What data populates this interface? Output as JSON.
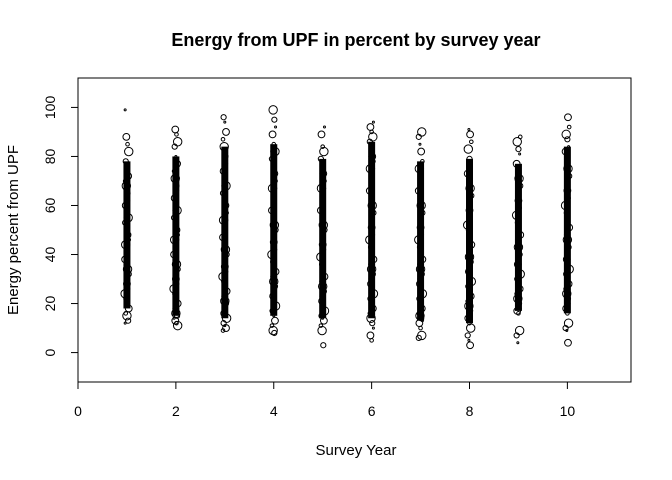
{
  "chart_data": {
    "type": "scatter",
    "title": "Energy from UPF in percent by survey year",
    "xlabel": "Survey Year",
    "ylabel": "Energy percent from UPF",
    "xlim": [
      0,
      11.3
    ],
    "ylim": [
      -12,
      112
    ],
    "x_ticks": [
      "0",
      "2",
      "4",
      "6",
      "8",
      "10"
    ],
    "y_ticks": [
      "0",
      "20",
      "40",
      "60",
      "80",
      "100"
    ],
    "grid": false,
    "point_style": "open circles, size proportional to survey weight",
    "series": [
      {
        "x": [
          1,
          1,
          1,
          1,
          1,
          1,
          1,
          1,
          1,
          1,
          1,
          1,
          1,
          1,
          1,
          1,
          1,
          1,
          1,
          1,
          1,
          1,
          1,
          1,
          1,
          1,
          1,
          1,
          1,
          1,
          1,
          1,
          1,
          1,
          1,
          1,
          2,
          2,
          2,
          2,
          2,
          2,
          2,
          2,
          2,
          2,
          2,
          2,
          2,
          2,
          2,
          2,
          2,
          2,
          2,
          2,
          2,
          2,
          2,
          2,
          2,
          2,
          2,
          2,
          2,
          2,
          2,
          2,
          2,
          2,
          2,
          2,
          2,
          2,
          3,
          3,
          3,
          3,
          3,
          3,
          3,
          3,
          3,
          3,
          3,
          3,
          3,
          3,
          3,
          3,
          3,
          3,
          3,
          3,
          3,
          3,
          3,
          3,
          3,
          3,
          3,
          3,
          3,
          3,
          3,
          3,
          3,
          3,
          3,
          3,
          3,
          3,
          3,
          4,
          4,
          4,
          4,
          4,
          4,
          4,
          4,
          4,
          4,
          4,
          4,
          4,
          4,
          4,
          4,
          4,
          4,
          4,
          4,
          4,
          4,
          4,
          4,
          4,
          4,
          4,
          4,
          4,
          4,
          4,
          4,
          4,
          4,
          4,
          4,
          4,
          5,
          5,
          5,
          5,
          5,
          5,
          5,
          5,
          5,
          5,
          5,
          5,
          5,
          5,
          5,
          5,
          5,
          5,
          5,
          5,
          5,
          5,
          5,
          5,
          5,
          5,
          5,
          5,
          5,
          5,
          5,
          5,
          5,
          5,
          5,
          6,
          6,
          6,
          6,
          6,
          6,
          6,
          6,
          6,
          6,
          6,
          6,
          6,
          6,
          6,
          6,
          6,
          6,
          6,
          6,
          6,
          6,
          6,
          6,
          6,
          6,
          6,
          6,
          6,
          6,
          6,
          6,
          6,
          6,
          6,
          6,
          6,
          6,
          7,
          7,
          7,
          7,
          7,
          7,
          7,
          7,
          7,
          7,
          7,
          7,
          7,
          7,
          7,
          7,
          7,
          7,
          7,
          7,
          7,
          7,
          7,
          7,
          7,
          7,
          7,
          7,
          7,
          7,
          7,
          7,
          7,
          7,
          7,
          7,
          7,
          8,
          8,
          8,
          8,
          8,
          8,
          8,
          8,
          8,
          8,
          8,
          8,
          8,
          8,
          8,
          8,
          8,
          8,
          8,
          8,
          8,
          8,
          8,
          8,
          8,
          8,
          8,
          8,
          8,
          8,
          8,
          8,
          8,
          8,
          8,
          8,
          8,
          9,
          9,
          9,
          9,
          9,
          9,
          9,
          9,
          9,
          9,
          9,
          9,
          9,
          9,
          9,
          9,
          9,
          9,
          9,
          9,
          9,
          9,
          9,
          9,
          9,
          9,
          9,
          9,
          9,
          9,
          9,
          9,
          9,
          9,
          10,
          10,
          10,
          10,
          10,
          10,
          10,
          10,
          10,
          10,
          10,
          10,
          10,
          10,
          10,
          10,
          10,
          10,
          10,
          10,
          10,
          10,
          10,
          10,
          10,
          10,
          10,
          10,
          10,
          10,
          10,
          10,
          10,
          10,
          10,
          10
        ],
        "y": [
          99,
          88,
          85,
          82,
          78,
          75,
          72,
          70,
          68,
          65,
          62,
          60,
          58,
          55,
          53,
          50,
          48,
          46,
          44,
          42,
          40,
          38,
          36,
          34,
          32,
          30,
          28,
          26,
          24,
          22,
          20,
          18,
          16,
          15,
          13,
          12,
          91,
          89,
          86,
          84,
          80,
          77,
          74,
          71,
          68,
          66,
          63,
          60,
          58,
          55,
          52,
          50,
          48,
          46,
          44,
          42,
          40,
          38,
          36,
          34,
          32,
          30,
          28,
          26,
          24,
          22,
          20,
          18,
          16,
          15,
          14,
          13,
          12,
          11,
          96,
          94,
          90,
          87,
          84,
          80,
          77,
          74,
          71,
          68,
          65,
          62,
          60,
          57,
          54,
          52,
          50,
          47,
          45,
          42,
          40,
          37,
          35,
          33,
          31,
          29,
          27,
          25,
          23,
          21,
          20,
          18,
          16,
          15,
          14,
          12,
          11,
          10,
          9,
          99,
          95,
          92,
          89,
          85,
          82,
          79,
          76,
          73,
          70,
          67,
          64,
          61,
          58,
          55,
          52,
          50,
          47,
          45,
          42,
          40,
          37,
          35,
          33,
          31,
          29,
          27,
          25,
          23,
          21,
          19,
          17,
          15,
          13,
          11,
          9,
          8,
          92,
          89,
          84,
          82,
          79,
          76,
          73,
          70,
          67,
          64,
          61,
          58,
          55,
          52,
          50,
          47,
          44,
          42,
          39,
          36,
          34,
          31,
          29,
          27,
          25,
          23,
          21,
          19,
          17,
          15,
          14,
          13,
          11,
          9,
          3,
          94,
          92,
          90,
          88,
          86,
          83,
          80,
          78,
          75,
          72,
          69,
          66,
          63,
          60,
          57,
          54,
          51,
          48,
          46,
          43,
          40,
          38,
          36,
          34,
          32,
          30,
          28,
          26,
          24,
          22,
          20,
          18,
          16,
          14,
          12,
          10,
          7,
          5,
          90,
          88,
          85,
          82,
          78,
          75,
          72,
          69,
          66,
          63,
          60,
          57,
          54,
          51,
          48,
          46,
          43,
          40,
          38,
          36,
          34,
          32,
          30,
          28,
          26,
          24,
          22,
          20,
          18,
          16,
          15,
          14,
          13,
          12,
          10,
          7,
          6,
          91,
          89,
          86,
          83,
          79,
          76,
          73,
          70,
          67,
          64,
          61,
          58,
          55,
          52,
          50,
          47,
          44,
          42,
          39,
          37,
          35,
          33,
          31,
          29,
          27,
          25,
          23,
          21,
          19,
          17,
          15,
          14,
          12,
          10,
          7,
          5,
          3,
          88,
          86,
          83,
          81,
          77,
          74,
          71,
          68,
          65,
          62,
          59,
          56,
          53,
          50,
          48,
          46,
          43,
          40,
          38,
          36,
          34,
          32,
          30,
          28,
          26,
          24,
          22,
          20,
          18,
          17,
          16,
          9,
          7,
          4,
          96,
          92,
          89,
          87,
          84,
          82,
          78,
          75,
          72,
          69,
          66,
          63,
          60,
          57,
          54,
          51,
          48,
          46,
          43,
          40,
          38,
          36,
          34,
          32,
          30,
          28,
          26,
          24,
          22,
          20,
          18,
          16,
          12,
          10,
          9,
          4
        ]
      }
    ]
  }
}
